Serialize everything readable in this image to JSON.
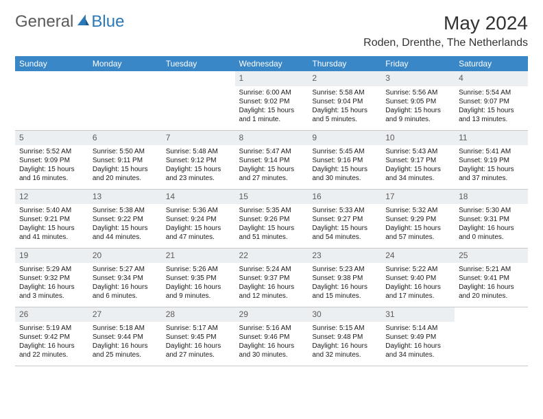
{
  "logo": {
    "text1": "General",
    "text2": "Blue"
  },
  "title": "May 2024",
  "location": "Roden, Drenthe, The Netherlands",
  "colors": {
    "header_bg": "#3a87c8",
    "header_text": "#ffffff",
    "daynum_bg": "#eceff1",
    "daynum_text": "#5a5a5a",
    "border": "#c8c8c8",
    "body_text": "#1a1a1a",
    "logo_general": "#5a5a5a",
    "logo_blue": "#2a78b8",
    "background": "#ffffff"
  },
  "typography": {
    "title_fontsize": 28,
    "location_fontsize": 16,
    "weekday_fontsize": 12,
    "daynum_fontsize": 12,
    "cell_fontsize": 10
  },
  "weekdays": [
    "Sunday",
    "Monday",
    "Tuesday",
    "Wednesday",
    "Thursday",
    "Friday",
    "Saturday"
  ],
  "weeks": [
    [
      {
        "day": "",
        "sunrise": "",
        "sunset": "",
        "daylight": ""
      },
      {
        "day": "",
        "sunrise": "",
        "sunset": "",
        "daylight": ""
      },
      {
        "day": "",
        "sunrise": "",
        "sunset": "",
        "daylight": ""
      },
      {
        "day": "1",
        "sunrise": "Sunrise: 6:00 AM",
        "sunset": "Sunset: 9:02 PM",
        "daylight": "Daylight: 15 hours and 1 minute."
      },
      {
        "day": "2",
        "sunrise": "Sunrise: 5:58 AM",
        "sunset": "Sunset: 9:04 PM",
        "daylight": "Daylight: 15 hours and 5 minutes."
      },
      {
        "day": "3",
        "sunrise": "Sunrise: 5:56 AM",
        "sunset": "Sunset: 9:05 PM",
        "daylight": "Daylight: 15 hours and 9 minutes."
      },
      {
        "day": "4",
        "sunrise": "Sunrise: 5:54 AM",
        "sunset": "Sunset: 9:07 PM",
        "daylight": "Daylight: 15 hours and 13 minutes."
      }
    ],
    [
      {
        "day": "5",
        "sunrise": "Sunrise: 5:52 AM",
        "sunset": "Sunset: 9:09 PM",
        "daylight": "Daylight: 15 hours and 16 minutes."
      },
      {
        "day": "6",
        "sunrise": "Sunrise: 5:50 AM",
        "sunset": "Sunset: 9:11 PM",
        "daylight": "Daylight: 15 hours and 20 minutes."
      },
      {
        "day": "7",
        "sunrise": "Sunrise: 5:48 AM",
        "sunset": "Sunset: 9:12 PM",
        "daylight": "Daylight: 15 hours and 23 minutes."
      },
      {
        "day": "8",
        "sunrise": "Sunrise: 5:47 AM",
        "sunset": "Sunset: 9:14 PM",
        "daylight": "Daylight: 15 hours and 27 minutes."
      },
      {
        "day": "9",
        "sunrise": "Sunrise: 5:45 AM",
        "sunset": "Sunset: 9:16 PM",
        "daylight": "Daylight: 15 hours and 30 minutes."
      },
      {
        "day": "10",
        "sunrise": "Sunrise: 5:43 AM",
        "sunset": "Sunset: 9:17 PM",
        "daylight": "Daylight: 15 hours and 34 minutes."
      },
      {
        "day": "11",
        "sunrise": "Sunrise: 5:41 AM",
        "sunset": "Sunset: 9:19 PM",
        "daylight": "Daylight: 15 hours and 37 minutes."
      }
    ],
    [
      {
        "day": "12",
        "sunrise": "Sunrise: 5:40 AM",
        "sunset": "Sunset: 9:21 PM",
        "daylight": "Daylight: 15 hours and 41 minutes."
      },
      {
        "day": "13",
        "sunrise": "Sunrise: 5:38 AM",
        "sunset": "Sunset: 9:22 PM",
        "daylight": "Daylight: 15 hours and 44 minutes."
      },
      {
        "day": "14",
        "sunrise": "Sunrise: 5:36 AM",
        "sunset": "Sunset: 9:24 PM",
        "daylight": "Daylight: 15 hours and 47 minutes."
      },
      {
        "day": "15",
        "sunrise": "Sunrise: 5:35 AM",
        "sunset": "Sunset: 9:26 PM",
        "daylight": "Daylight: 15 hours and 51 minutes."
      },
      {
        "day": "16",
        "sunrise": "Sunrise: 5:33 AM",
        "sunset": "Sunset: 9:27 PM",
        "daylight": "Daylight: 15 hours and 54 minutes."
      },
      {
        "day": "17",
        "sunrise": "Sunrise: 5:32 AM",
        "sunset": "Sunset: 9:29 PM",
        "daylight": "Daylight: 15 hours and 57 minutes."
      },
      {
        "day": "18",
        "sunrise": "Sunrise: 5:30 AM",
        "sunset": "Sunset: 9:31 PM",
        "daylight": "Daylight: 16 hours and 0 minutes."
      }
    ],
    [
      {
        "day": "19",
        "sunrise": "Sunrise: 5:29 AM",
        "sunset": "Sunset: 9:32 PM",
        "daylight": "Daylight: 16 hours and 3 minutes."
      },
      {
        "day": "20",
        "sunrise": "Sunrise: 5:27 AM",
        "sunset": "Sunset: 9:34 PM",
        "daylight": "Daylight: 16 hours and 6 minutes."
      },
      {
        "day": "21",
        "sunrise": "Sunrise: 5:26 AM",
        "sunset": "Sunset: 9:35 PM",
        "daylight": "Daylight: 16 hours and 9 minutes."
      },
      {
        "day": "22",
        "sunrise": "Sunrise: 5:24 AM",
        "sunset": "Sunset: 9:37 PM",
        "daylight": "Daylight: 16 hours and 12 minutes."
      },
      {
        "day": "23",
        "sunrise": "Sunrise: 5:23 AM",
        "sunset": "Sunset: 9:38 PM",
        "daylight": "Daylight: 16 hours and 15 minutes."
      },
      {
        "day": "24",
        "sunrise": "Sunrise: 5:22 AM",
        "sunset": "Sunset: 9:40 PM",
        "daylight": "Daylight: 16 hours and 17 minutes."
      },
      {
        "day": "25",
        "sunrise": "Sunrise: 5:21 AM",
        "sunset": "Sunset: 9:41 PM",
        "daylight": "Daylight: 16 hours and 20 minutes."
      }
    ],
    [
      {
        "day": "26",
        "sunrise": "Sunrise: 5:19 AM",
        "sunset": "Sunset: 9:42 PM",
        "daylight": "Daylight: 16 hours and 22 minutes."
      },
      {
        "day": "27",
        "sunrise": "Sunrise: 5:18 AM",
        "sunset": "Sunset: 9:44 PM",
        "daylight": "Daylight: 16 hours and 25 minutes."
      },
      {
        "day": "28",
        "sunrise": "Sunrise: 5:17 AM",
        "sunset": "Sunset: 9:45 PM",
        "daylight": "Daylight: 16 hours and 27 minutes."
      },
      {
        "day": "29",
        "sunrise": "Sunrise: 5:16 AM",
        "sunset": "Sunset: 9:46 PM",
        "daylight": "Daylight: 16 hours and 30 minutes."
      },
      {
        "day": "30",
        "sunrise": "Sunrise: 5:15 AM",
        "sunset": "Sunset: 9:48 PM",
        "daylight": "Daylight: 16 hours and 32 minutes."
      },
      {
        "day": "31",
        "sunrise": "Sunrise: 5:14 AM",
        "sunset": "Sunset: 9:49 PM",
        "daylight": "Daylight: 16 hours and 34 minutes."
      },
      {
        "day": "",
        "sunrise": "",
        "sunset": "",
        "daylight": ""
      }
    ]
  ]
}
